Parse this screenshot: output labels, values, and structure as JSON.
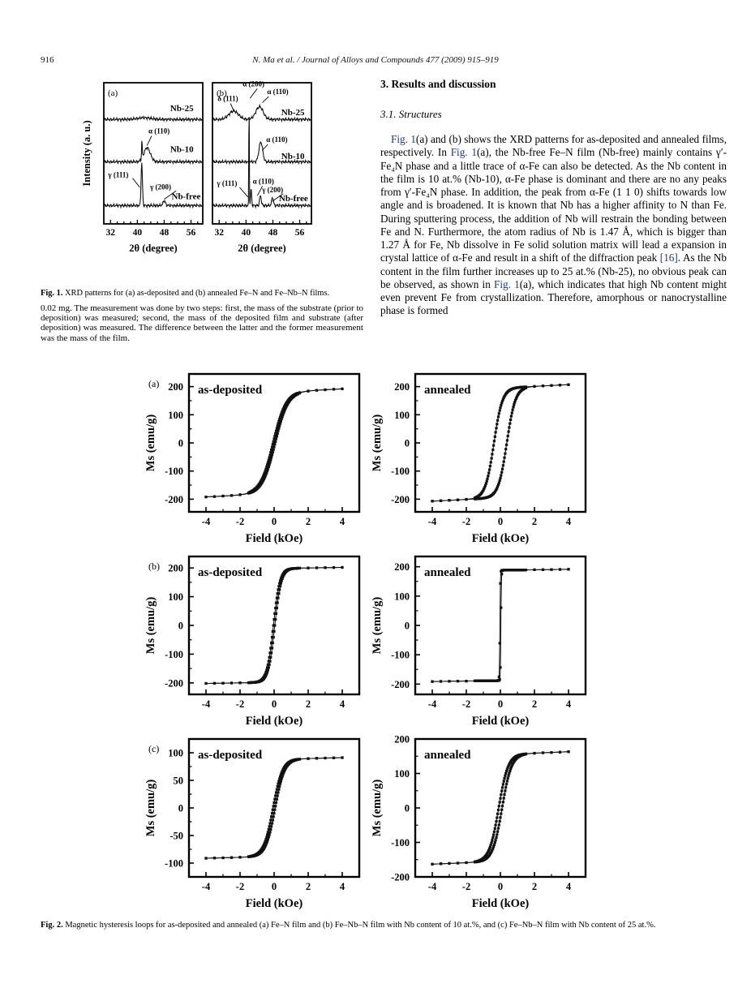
{
  "page": {
    "number": "916",
    "header": "N. Ma et al. / Journal of Alloys and Compounds 477 (2009) 915–919"
  },
  "colors": {
    "link_blue": "#1b3a8f",
    "text": "#000000"
  },
  "left_column": {
    "paragraph": "0.02 mg. The measurement was done by two steps: first, the mass of the substrate (prior to deposition) was measured; second, the mass of the deposited film and substrate (after deposition) was measured. The difference between the latter and the former measurement was the mass of the film."
  },
  "right_column": {
    "section_heading": "3. Results and discussion",
    "subsection_heading": "3.1. Structures",
    "paragraph_segments": [
      {
        "text": "Fig. 1",
        "link": true
      },
      {
        "text": "(a) and (b) shows the XRD patterns for as-deposited and annealed films, respectively. In "
      },
      {
        "text": "Fig. 1",
        "link": true
      },
      {
        "text": "(a), the Nb-free Fe–N film (Nb-free) mainly contains γ′-Fe₄N phase and a little trace of α-Fe can also be detected. As the Nb content in the film is 10 at.% (Nb-10), α-Fe phase is dominant and there are no any peaks from γ′-Fe₄N phase. In addition, the peak from α-Fe (1 1 0) shifts towards low angle and is broadened. It is known that Nb has a higher affinity to N than Fe. During sputtering process, the addition of Nb will restrain the bonding between Fe and N. Furthermore, the atom radius of Nb is 1.47 Å, which is bigger than 1.27 Å for Fe, Nb dissolve in Fe solid solution matrix will lead a expansion in crystal lattice of α-Fe and result in a shift of the diffraction peak "
      },
      {
        "text": "[16]",
        "link": true
      },
      {
        "text": ". As the Nb content in the film further increases up to 25 at.% (Nb-25), no obvious peak can be observed, as shown in "
      },
      {
        "text": "Fig. 1",
        "link": true
      },
      {
        "text": "(a), which indicates that high Nb content might even prevent Fe from crystallization. Therefore, amorphous or nanocrystalline phase is formed"
      }
    ]
  },
  "figures": {
    "fig1": {
      "caption_label": "Fig. 1.",
      "caption_text": "XRD patterns for (a) as-deposited and (b) annealed Fe–N and Fe–Nb–N films."
    },
    "fig2": {
      "caption_label": "Fig. 2.",
      "caption_text": "Magnetic hysteresis loops for as-deposited and annealed (a) Fe–N film and (b) Fe–Nb–N film with Nb content of 10 at.%, and (c) Fe–Nb–N film with Nb content of 25 at.%."
    }
  },
  "chart_data": {
    "fig1": {
      "type": "line",
      "xlabel": "2θ (degree)",
      "ylabel": "Intensity (a. u.)",
      "xlim": [
        30,
        59.5
      ],
      "xticks": [
        32,
        40,
        48,
        56
      ],
      "panels": [
        {
          "tag": "(a)",
          "traces": [
            {
              "name": "Nb-free",
              "base": 0.13,
              "peaks": [
                [
                  41.3,
                  0.3,
                  0.2
                ],
                [
                  48.0,
                  0.035,
                  0.35
                ]
              ]
            },
            {
              "name": "Nb-10",
              "base": 0.44,
              "peaks": [
                [
                  41.35,
                  0.13,
                  0.1
                ],
                [
                  42.9,
                  0.1,
                  0.95
                ]
              ]
            },
            {
              "name": "Nb-25",
              "base": 0.74,
              "peaks": [
                [
                  42.0,
                  0.012,
                  2.0
                ]
              ]
            }
          ],
          "labels": [
            {
              "t": "Nb-25",
              "x": 49.8,
              "f": 0.8
            },
            {
              "t": "Nb-10",
              "x": 49.8,
              "f": 0.51
            },
            {
              "t": "Nb-free",
              "x": 50.2,
              "f": 0.175
            },
            {
              "t": "α (110)",
              "x": 43.3,
              "f": 0.64,
              "ax": 42.9,
              "af": 0.555,
              "sx": 4,
              "sy": 3
            },
            {
              "t": "γ (111)",
              "x": 31.3,
              "f": 0.33,
              "ax": 40.7,
              "af": 0.26,
              "sx": 30,
              "sy": 1
            },
            {
              "t": "γ (200)",
              "x": 43.8,
              "f": 0.245,
              "ax": 48.0,
              "af": 0.175,
              "sx": 32,
              "sy": 2
            }
          ]
        },
        {
          "tag": "(b)",
          "traces": [
            {
              "name": "Nb-free",
              "base": 0.13,
              "peaks": [
                [
                  40.9,
                  0.82,
                  0.07
                ],
                [
                  41.5,
                  0.12,
                  0.15
                ],
                [
                  44.3,
                  0.07,
                  0.25
                ],
                [
                  47.9,
                  0.06,
                  0.25
                ]
              ]
            },
            {
              "name": "Nb-10",
              "base": 0.44,
              "peaks": [
                [
                  44.4,
                  0.14,
                  0.55
                ]
              ]
            },
            {
              "name": "Nb-25",
              "base": 0.74,
              "peaks": [
                [
                  36.3,
                  0.06,
                  1.4
                ],
                [
                  44.0,
                  0.09,
                  1.1
                ]
              ]
            }
          ],
          "labels": [
            {
              "t": "α (200)",
              "x": 39.0,
              "f": 0.975,
              "ax": 41.2,
              "af": 0.89,
              "sx": 18,
              "sy": 3
            },
            {
              "t": "α (110)",
              "x": 46.3,
              "f": 0.92,
              "ax": 44.9,
              "af": 0.86,
              "sx": 2,
              "sy": 3
            },
            {
              "t": "δ (111)",
              "x": 31.5,
              "f": 0.87,
              "ax": 36.2,
              "af": 0.81,
              "sx": 16,
              "sy": 3
            },
            {
              "t": "Nb-25",
              "x": 50.5,
              "f": 0.77
            },
            {
              "t": "α (110)",
              "x": 46.0,
              "f": 0.58,
              "ax": 44.8,
              "af": 0.52,
              "sx": 2,
              "sy": 3
            },
            {
              "t": "Nb-10",
              "x": 50.5,
              "f": 0.46
            },
            {
              "t": "γ (111)",
              "x": 31.3,
              "f": 0.27,
              "ax": 40.6,
              "af": 0.19,
              "sx": 28,
              "sy": 2
            },
            {
              "t": "α (110)",
              "x": 42.0,
              "f": 0.285,
              "ax": 43.4,
              "af": 0.2,
              "sx": 12,
              "sy": 3
            },
            {
              "t": "γ (200)",
              "x": 44.8,
              "f": 0.225,
              "ax": 47.8,
              "af": 0.16,
              "sx": 26,
              "sy": 2
            },
            {
              "t": "Nb-free",
              "x": 49.8,
              "f": 0.16
            }
          ]
        }
      ]
    },
    "fig2": {
      "type": "line",
      "xlabel": "Field (kOe)",
      "ylabel": "Ms (emu/g)",
      "xlim": [
        -5,
        5
      ],
      "xticks": [
        -4,
        -2,
        0,
        2,
        4
      ],
      "subplots": [
        {
          "panel": "(a)",
          "label": "as-deposited",
          "yticks": [
            -200,
            -100,
            0,
            100,
            200
          ],
          "ylim": [
            -245,
            245
          ],
          "Ms": 180,
          "Hc": 0.06,
          "w": 0.75,
          "slope": 3.0
        },
        {
          "panel": "",
          "label": "annealed",
          "yticks": [
            -200,
            -100,
            0,
            100,
            200
          ],
          "ylim": [
            -245,
            245
          ],
          "Ms": 195,
          "Hc": 0.38,
          "w": 0.5,
          "slope": 3.0
        },
        {
          "panel": "(b)",
          "label": "as-deposited",
          "yticks": [
            -200,
            -100,
            0,
            100,
            200
          ],
          "ylim": [
            -240,
            240
          ],
          "Ms": 198,
          "Hc": 0.04,
          "w": 0.38,
          "slope": 1.0
        },
        {
          "panel": "",
          "label": "annealed",
          "yticks": [
            -200,
            -100,
            0,
            100,
            200
          ],
          "ylim": [
            -235,
            235
          ],
          "Ms": 188,
          "Hc": 0.03,
          "w": 0.03,
          "slope": 0.8
        },
        {
          "panel": "(c)",
          "label": "as-deposited",
          "yticks": [
            -100,
            -50,
            0,
            50,
            100
          ],
          "ylim": [
            -125,
            125
          ],
          "Ms": 88,
          "Hc": 0.06,
          "w": 0.55,
          "slope": 0.8
        },
        {
          "panel": "",
          "label": "annealed",
          "yticks": [
            -200,
            -100,
            0,
            100,
            200
          ],
          "ylim": [
            -200,
            200
          ],
          "Ms": 155,
          "Hc": 0.1,
          "w": 0.55,
          "slope": 2.0
        }
      ]
    }
  }
}
